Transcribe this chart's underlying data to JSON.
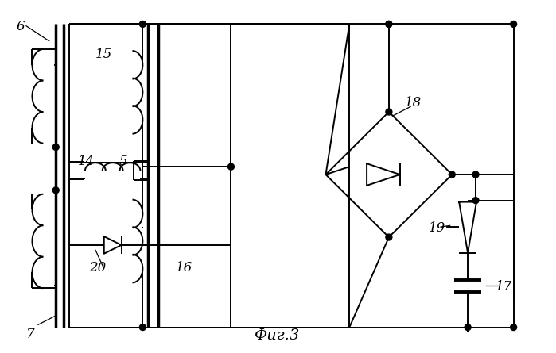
{
  "title": "Фиг.3",
  "bg_color": "#ffffff",
  "line_color": "#000000",
  "lw": 1.4
}
